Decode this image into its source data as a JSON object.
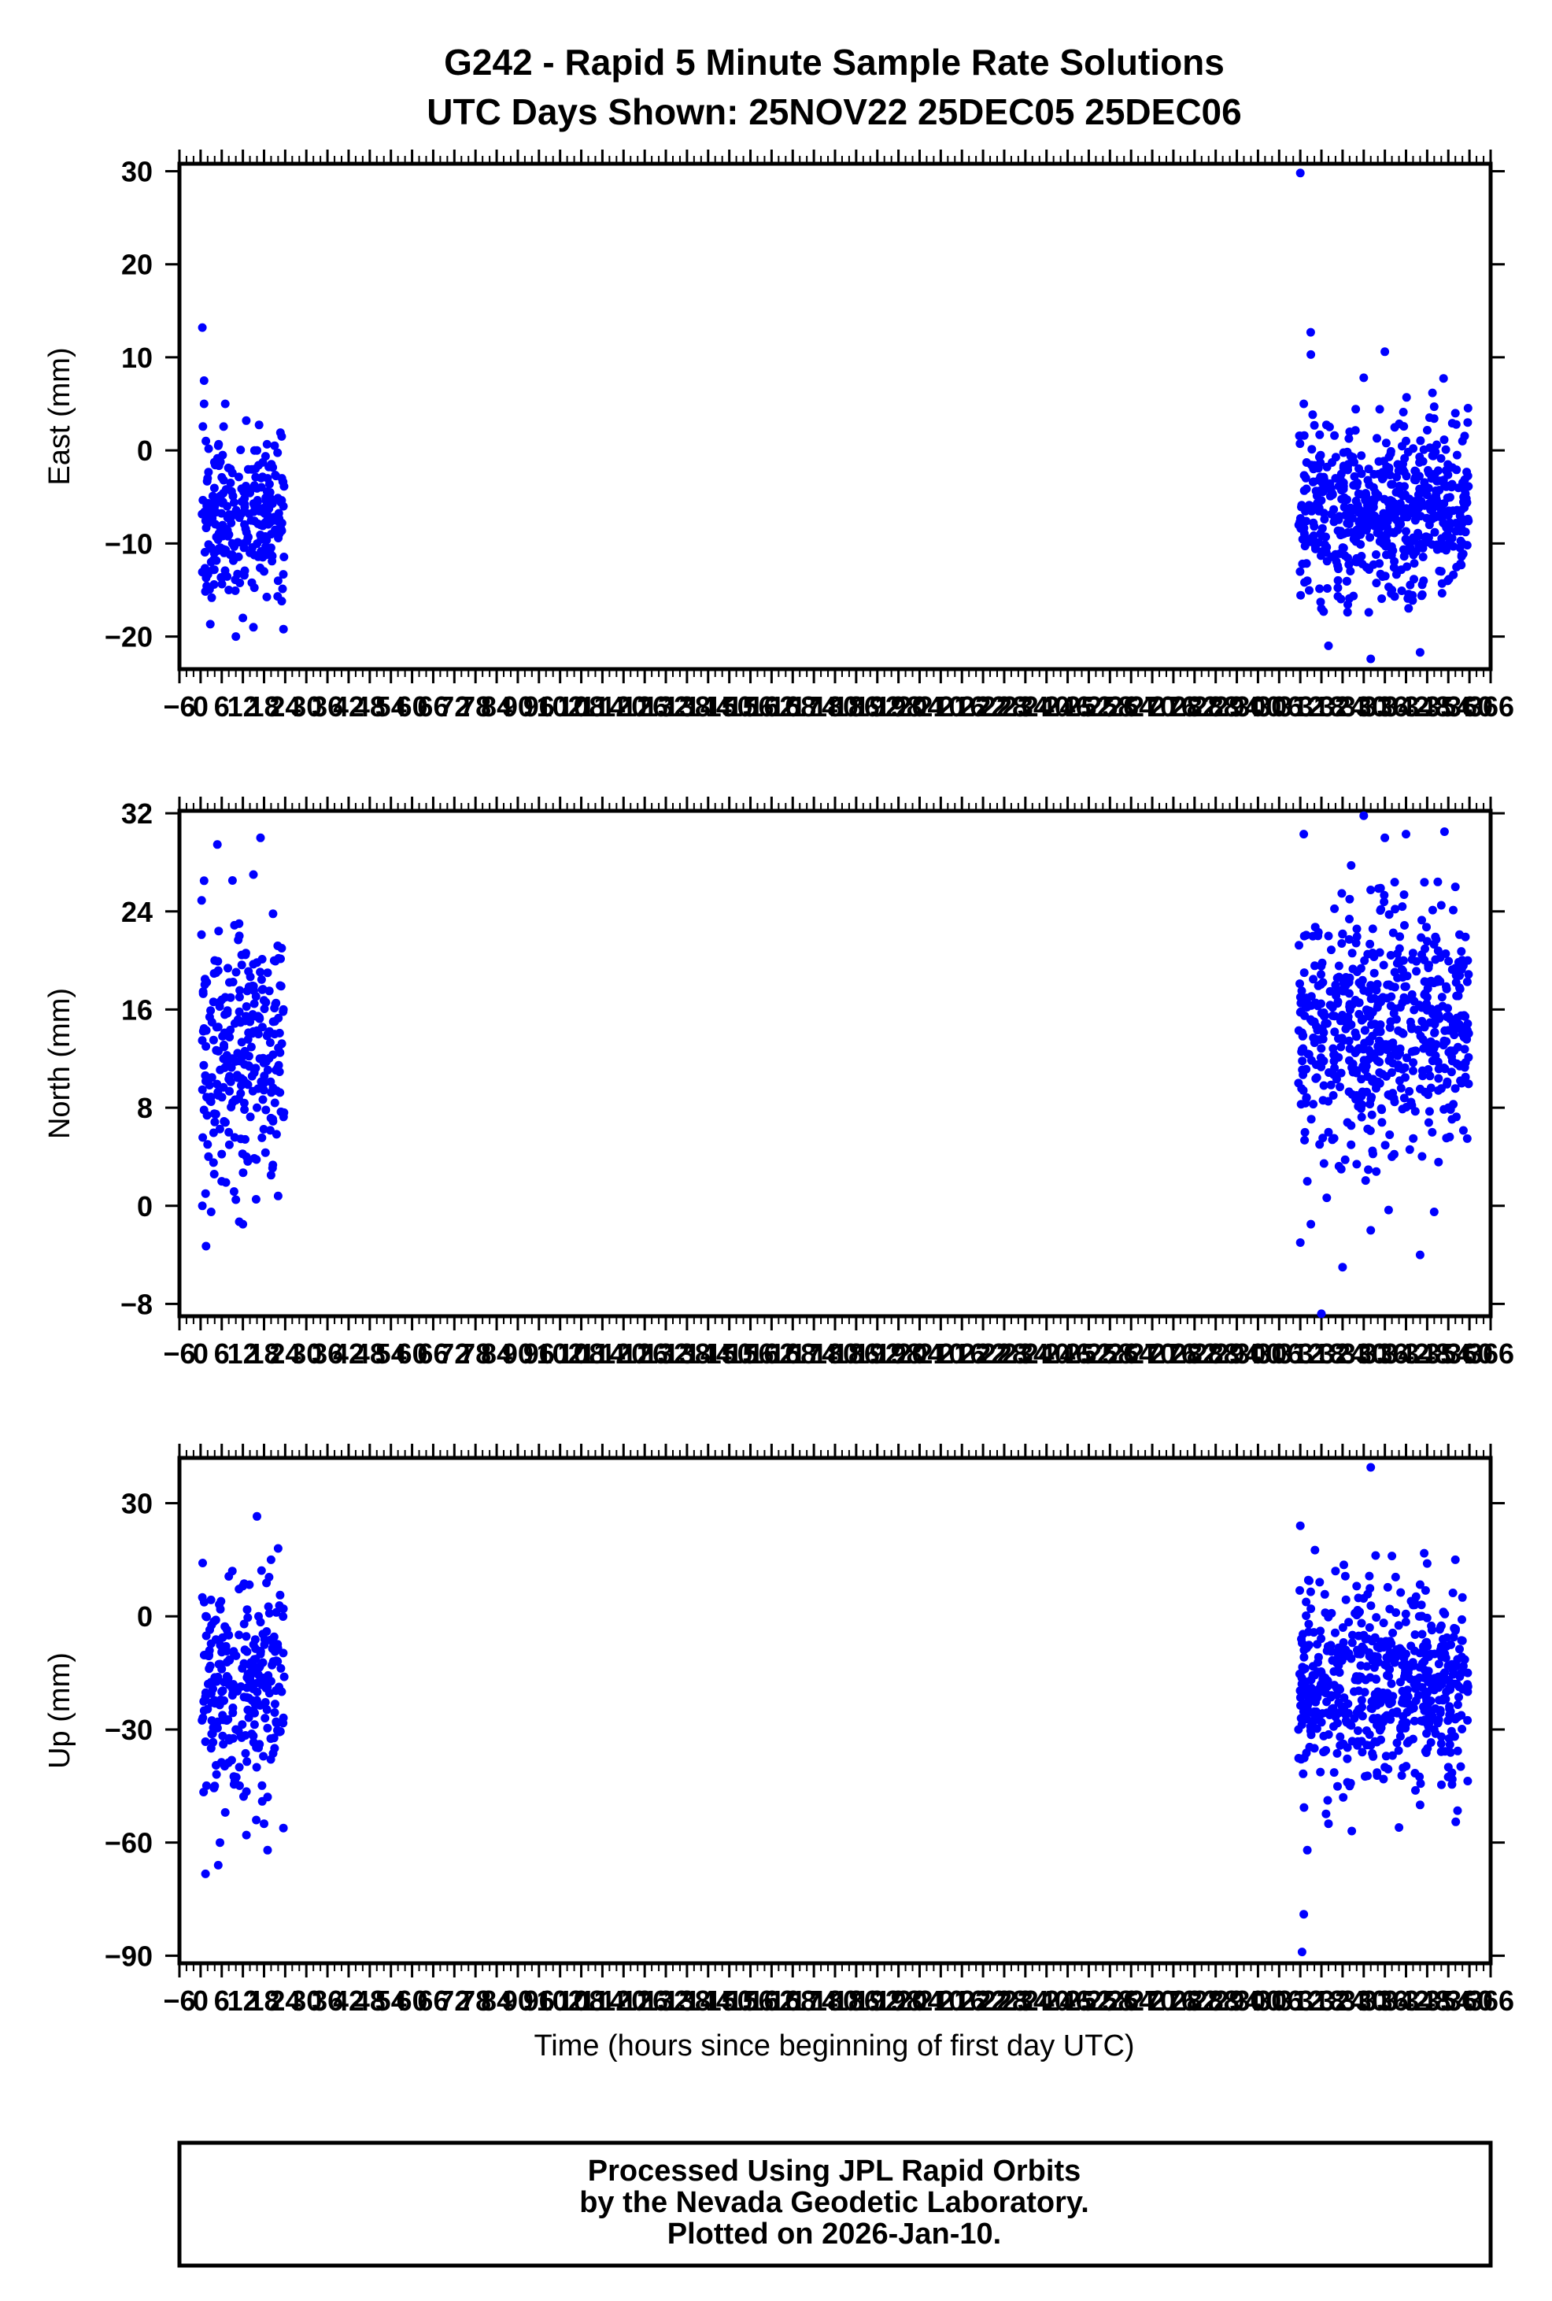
{
  "title_line1": "G242 - Rapid 5 Minute Sample Rate Solutions",
  "title_line2": "UTC Days Shown:  25NOV22 25DEC05 25DEC06",
  "xlabel": "Time (hours since beginning of first day UTC)",
  "footer": {
    "line1": "Processed Using JPL Rapid Orbits",
    "line2": "by the Nevada Geodetic Laboratory.",
    "line3": "Plotted on 2026-Jan-10."
  },
  "colors": {
    "points": "#0000ff",
    "axes": "#000000",
    "background": "#ffffff"
  },
  "chart_data": [
    {
      "type": "scatter",
      "ylabel": "East (mm)",
      "xlim": [
        -6,
        366
      ],
      "ylim": [
        -23.5,
        30.8
      ],
      "yticks": [
        30,
        20,
        10,
        0,
        -10,
        -20
      ],
      "xticks": [
        -6,
        0,
        6,
        12,
        18,
        24,
        30,
        36,
        42,
        48,
        54,
        60,
        66,
        72,
        78,
        84,
        90,
        96,
        102,
        108,
        114,
        120,
        126,
        132,
        138,
        144,
        150,
        156,
        162,
        168,
        174,
        180,
        186,
        192,
        198,
        204,
        210,
        216,
        222,
        228,
        234,
        240,
        246,
        252,
        258,
        264,
        270,
        276,
        282,
        288,
        294,
        300,
        306,
        312,
        318,
        324,
        330,
        336,
        342,
        348,
        354,
        360,
        366
      ],
      "series": [
        {
          "x": [
            0.5,
            1.0,
            1.0,
            1.5,
            2.0,
            3.0,
            4.0,
            5.0,
            6.0,
            7.0,
            8.0,
            8.5,
            9.0,
            10.0,
            11.0,
            12.0,
            13.0,
            14.0,
            15.0,
            16.0,
            17.0,
            18.0,
            19.0,
            20.0,
            21.0,
            22.0,
            23.0,
            23.5
          ],
          "y": [
            13.2,
            7.5,
            5.0,
            1.0,
            -3.0,
            -12.0,
            -6.0,
            0.5,
            -9.0,
            5.0,
            -15.0,
            -2.0,
            -10.0,
            -20.0,
            -7.0,
            -18.0,
            -4.0,
            -11.0,
            -19.0,
            0.0,
            -8.0,
            -13.0,
            -3.0,
            -9.0,
            0.5,
            -14.0,
            1.5,
            -6.0
          ]
        },
        {
          "x": [
            312.0,
            312.5,
            313.0,
            314.0,
            315.0,
            316.0,
            318.0,
            320.0,
            322.0,
            324.0,
            326.0,
            328.0,
            330.0,
            332.0,
            334.0,
            336.0,
            338.0,
            340.0,
            342.0,
            344.0,
            346.0,
            348.0,
            350.0,
            352.0,
            354.0,
            356.0,
            358.0,
            359.5
          ],
          "y": [
            29.8,
            -8.0,
            5.0,
            -14.0,
            10.3,
            -6.0,
            -17.0,
            -21.0,
            -3.0,
            -9.0,
            2.0,
            -12.0,
            7.8,
            -22.4,
            -5.0,
            10.6,
            -15.0,
            -8.0,
            1.0,
            -11.0,
            -21.7,
            -4.0,
            4.7,
            -13.0,
            -7.0,
            4.0,
            -10.0,
            3.0
          ]
        }
      ]
    },
    {
      "type": "scatter",
      "ylabel": "North (mm)",
      "xlim": [
        -6,
        366
      ],
      "ylim": [
        -9.0,
        32.2
      ],
      "yticks": [
        32,
        24,
        16,
        8,
        0,
        -8
      ],
      "xticks": [
        -6,
        0,
        6,
        12,
        18,
        24,
        30,
        36,
        42,
        48,
        54,
        60,
        66,
        72,
        78,
        84,
        90,
        96,
        102,
        108,
        114,
        120,
        126,
        132,
        138,
        144,
        150,
        156,
        162,
        168,
        174,
        180,
        186,
        192,
        198,
        204,
        210,
        216,
        222,
        228,
        234,
        240,
        246,
        252,
        258,
        264,
        270,
        276,
        282,
        288,
        294,
        300,
        306,
        312,
        318,
        324,
        330,
        336,
        342,
        348,
        354,
        360,
        366
      ],
      "series": [
        {
          "x": [
            0.5,
            1.0,
            1.5,
            2.0,
            3.0,
            4.0,
            5.0,
            6.0,
            7.0,
            8.0,
            9.0,
            10.0,
            11.0,
            12.0,
            13.0,
            14.0,
            15.0,
            16.0,
            17.0,
            18.0,
            19.0,
            20.0,
            21.0,
            22.0,
            23.0,
            23.5
          ],
          "y": [
            0.0,
            26.5,
            13.0,
            5.0,
            -0.5,
            20.0,
            9.0,
            2.0,
            17.0,
            6.0,
            12.0,
            0.5,
            22.0,
            -1.5,
            4.0,
            15.0,
            27.0,
            8.0,
            30.0,
            10.0,
            19.0,
            2.5,
            14.0,
            0.8,
            21.0,
            16.0
          ]
        },
        {
          "x": [
            311.5,
            312.0,
            313.0,
            314.0,
            315.0,
            316.0,
            317.0,
            318.0,
            320.0,
            322.0,
            324.0,
            326.0,
            328.0,
            330.0,
            332.0,
            334.0,
            336.0,
            338.0,
            340.0,
            342.0,
            344.0,
            346.0,
            348.0,
            350.0,
            352.0,
            354.0,
            356.0,
            358.0,
            359.5
          ],
          "y": [
            10.0,
            -3.0,
            30.3,
            2.0,
            -1.5,
            15.0,
            22.0,
            -8.8,
            6.0,
            18.0,
            -5.0,
            25.0,
            9.0,
            31.8,
            -2.0,
            13.0,
            30.0,
            4.0,
            20.0,
            30.3,
            11.0,
            -4.0,
            17.0,
            -0.5,
            24.5,
            8.0,
            26.0,
            14.0,
            20.0
          ]
        }
      ]
    },
    {
      "type": "scatter",
      "ylabel": "Up (mm)",
      "xlim": [
        -6,
        366
      ],
      "ylim": [
        -92,
        42
      ],
      "yticks": [
        30,
        0,
        -30,
        -60,
        -90
      ],
      "xticks": [
        -6,
        0,
        6,
        12,
        18,
        24,
        30,
        36,
        42,
        48,
        54,
        60,
        66,
        72,
        78,
        84,
        90,
        96,
        102,
        108,
        114,
        120,
        126,
        132,
        138,
        144,
        150,
        156,
        162,
        168,
        174,
        180,
        186,
        192,
        198,
        204,
        210,
        216,
        222,
        228,
        234,
        240,
        246,
        252,
        258,
        264,
        270,
        276,
        282,
        288,
        294,
        300,
        306,
        312,
        318,
        324,
        330,
        336,
        342,
        348,
        354,
        360,
        366
      ],
      "series": [
        {
          "x": [
            0.5,
            1.0,
            1.5,
            2.0,
            3.0,
            4.0,
            5.0,
            5.5,
            6.0,
            7.0,
            8.0,
            9.0,
            10.0,
            11.0,
            12.0,
            13.0,
            14.0,
            15.0,
            16.0,
            17.0,
            18.0,
            19.0,
            20.0,
            21.0,
            22.0,
            23.0,
            23.5
          ],
          "y": [
            5.0,
            -25.0,
            0.0,
            -10.0,
            -35.0,
            -45.0,
            -66.0,
            -60.0,
            -20.0,
            -52.0,
            -5.0,
            12.0,
            -30.0,
            -40.0,
            8.0,
            -58.0,
            -15.0,
            -25.0,
            26.5,
            -10.0,
            -55.0,
            -62.0,
            15.0,
            -35.0,
            18.0,
            -20.0,
            2.0
          ]
        },
        {
          "x": [
            311.5,
            312.0,
            312.5,
            313.0,
            314.0,
            315.0,
            316.0,
            318.0,
            320.0,
            322.0,
            324.0,
            326.0,
            328.0,
            330.0,
            332.0,
            334.0,
            336.0,
            338.0,
            340.0,
            342.0,
            344.0,
            346.0,
            348.0,
            350.0,
            352.0,
            354.0,
            356.0,
            358.0,
            359.5
          ],
          "y": [
            -30.0,
            24.0,
            -89.0,
            -79.0,
            -62.0,
            2.0,
            -35.0,
            -15.0,
            -55.0,
            12.0,
            -25.0,
            -45.0,
            8.0,
            -5.0,
            39.5,
            -20.0,
            -40.0,
            16.0,
            -56.0,
            -10.0,
            3.0,
            -50.0,
            14.0,
            -30.0,
            -8.0,
            -40.0,
            15.0,
            5.0,
            -20.0
          ]
        }
      ]
    }
  ]
}
